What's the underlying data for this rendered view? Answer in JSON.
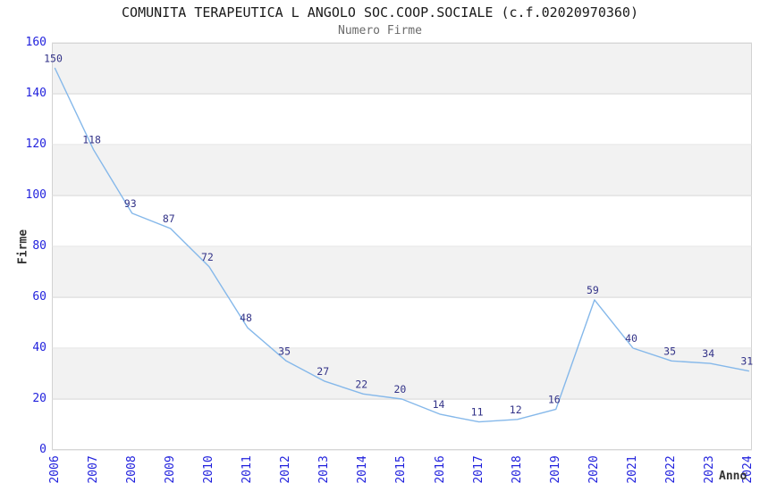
{
  "header": {
    "title": "COMUNITA TERAPEUTICA L ANGOLO SOC.COOP.SOCIALE (c.f.02020970360)",
    "subtitle": "Numero Firme"
  },
  "chart_data": {
    "type": "line",
    "title": "COMUNITA TERAPEUTICA L ANGOLO SOC.COOP.SOCIALE (c.f.02020970360)",
    "subtitle": "Numero Firme",
    "xlabel": "Anno",
    "ylabel": "Firme",
    "x": [
      2006,
      2007,
      2008,
      2009,
      2010,
      2011,
      2012,
      2013,
      2014,
      2015,
      2016,
      2017,
      2018,
      2019,
      2020,
      2021,
      2022,
      2023,
      2024
    ],
    "values": [
      150,
      118,
      93,
      87,
      72,
      48,
      35,
      27,
      22,
      20,
      14,
      11,
      12,
      16,
      59,
      40,
      35,
      34,
      31
    ],
    "ylim": [
      0,
      160
    ],
    "ytick_step": 20,
    "yticks": [
      0,
      20,
      40,
      60,
      80,
      100,
      120,
      140,
      160
    ],
    "grid": "horizontal",
    "legend_position": "none",
    "point_labels_visible": true,
    "colors": {
      "line": "#85b8ea",
      "point_label": "#333388",
      "tick_label": "#2222dd",
      "band_fill": "#f2f2f2",
      "gridline": "#dcdcdc",
      "title": "#1a1a1a",
      "subtitle": "#6b6b6b",
      "axis_title": "#333333"
    }
  }
}
